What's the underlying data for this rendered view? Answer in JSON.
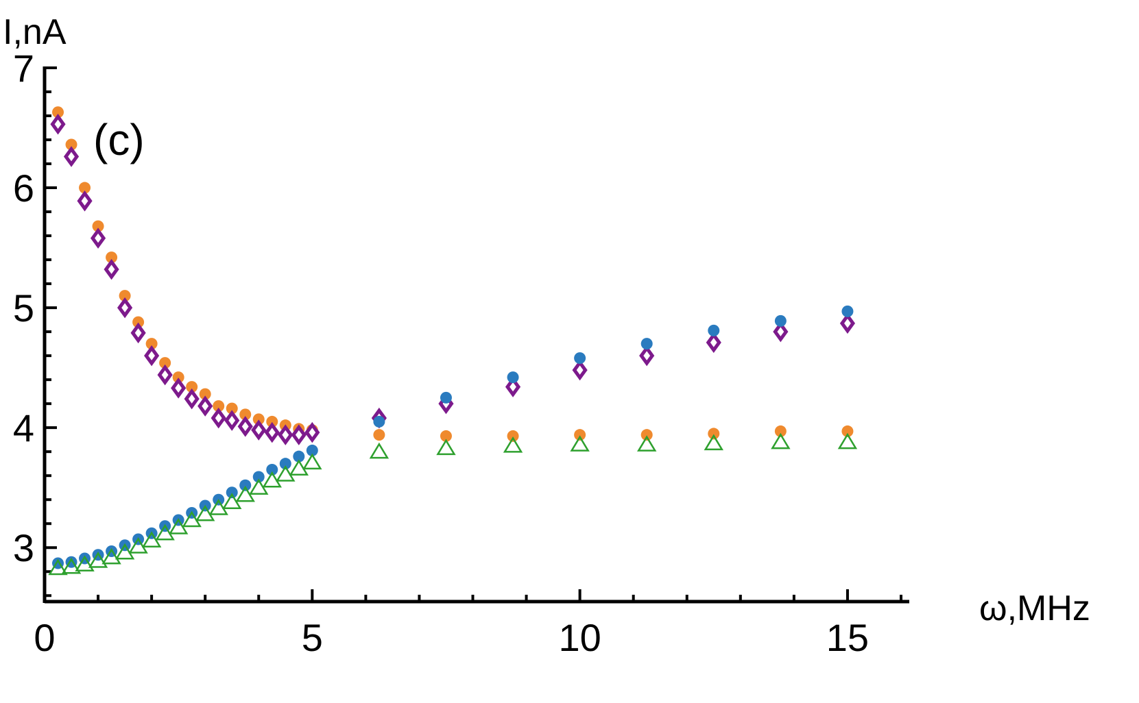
{
  "chart_data": {
    "type": "scatter",
    "title": "",
    "panel_label": "(c)",
    "xlabel": "ω,MHz",
    "ylabel": "I,nA",
    "xlim": [
      0,
      16
    ],
    "ylim": [
      2.55,
      7
    ],
    "xticks": [
      0,
      5,
      10,
      15
    ],
    "xtick_labels": [
      "0",
      "5",
      "10",
      "15"
    ],
    "yticks": [
      3,
      4,
      5,
      6,
      7
    ],
    "ytick_labels": [
      "3",
      "4",
      "5",
      "6",
      "7"
    ],
    "grid": false,
    "legend": "none",
    "series": [
      {
        "marker": "filled-circle",
        "color": "#ef8a2e",
        "x": [
          0.25,
          0.5,
          0.75,
          1.0,
          1.25,
          1.5,
          1.75,
          2.0,
          2.25,
          2.5,
          2.75,
          3.0,
          3.25,
          3.5,
          3.75,
          4.0,
          4.25,
          4.5,
          4.75,
          5.0,
          6.25,
          7.5,
          8.75,
          10.0,
          11.25,
          12.5,
          13.75,
          15.0
        ],
        "y": [
          6.63,
          6.36,
          6.0,
          5.68,
          5.42,
          5.1,
          4.88,
          4.7,
          4.54,
          4.42,
          4.34,
          4.28,
          4.18,
          4.16,
          4.11,
          4.07,
          4.05,
          4.02,
          3.99,
          3.98,
          3.94,
          3.93,
          3.93,
          3.94,
          3.94,
          3.95,
          3.97,
          3.97
        ]
      },
      {
        "marker": "open-diamond",
        "color": "#7d1a8c",
        "x": [
          0.25,
          0.5,
          0.75,
          1.0,
          1.25,
          1.5,
          1.75,
          2.0,
          2.25,
          2.5,
          2.75,
          3.0,
          3.25,
          3.5,
          3.75,
          4.0,
          4.25,
          4.5,
          4.75,
          5.0,
          6.25,
          7.5,
          8.75,
          10.0,
          11.25,
          12.5,
          13.75,
          15.0
        ],
        "y": [
          6.53,
          6.26,
          5.89,
          5.58,
          5.32,
          5.0,
          4.79,
          4.6,
          4.44,
          4.33,
          4.24,
          4.18,
          4.08,
          4.06,
          4.01,
          3.98,
          3.96,
          3.94,
          3.94,
          3.96,
          4.08,
          4.2,
          4.34,
          4.48,
          4.6,
          4.71,
          4.8,
          4.87
        ]
      },
      {
        "marker": "filled-circle",
        "color": "#2a7bbf",
        "x": [
          0.25,
          0.5,
          0.75,
          1.0,
          1.25,
          1.5,
          1.75,
          2.0,
          2.25,
          2.5,
          2.75,
          3.0,
          3.25,
          3.5,
          3.75,
          4.0,
          4.25,
          4.5,
          4.75,
          5.0,
          6.25,
          7.5,
          8.75,
          10.0,
          11.25,
          12.5,
          13.75,
          15.0
        ],
        "y": [
          2.87,
          2.88,
          2.91,
          2.94,
          2.97,
          3.02,
          3.07,
          3.12,
          3.18,
          3.23,
          3.29,
          3.35,
          3.4,
          3.46,
          3.52,
          3.59,
          3.65,
          3.7,
          3.76,
          3.81,
          4.05,
          4.25,
          4.42,
          4.58,
          4.7,
          4.81,
          4.89,
          4.97
        ]
      },
      {
        "marker": "open-triangle",
        "color": "#2ea02e",
        "x": [
          0.25,
          0.5,
          0.75,
          1.0,
          1.25,
          1.5,
          1.75,
          2.0,
          2.25,
          2.5,
          2.75,
          3.0,
          3.25,
          3.5,
          3.75,
          4.0,
          4.25,
          4.5,
          4.75,
          5.0,
          6.25,
          7.5,
          8.75,
          10.0,
          11.25,
          12.5,
          13.75,
          15.0
        ],
        "y": [
          2.83,
          2.84,
          2.86,
          2.89,
          2.92,
          2.96,
          3.01,
          3.06,
          3.12,
          3.17,
          3.23,
          3.28,
          3.33,
          3.38,
          3.44,
          3.5,
          3.56,
          3.61,
          3.66,
          3.71,
          3.8,
          3.83,
          3.85,
          3.86,
          3.86,
          3.87,
          3.88,
          3.88
        ]
      }
    ]
  }
}
